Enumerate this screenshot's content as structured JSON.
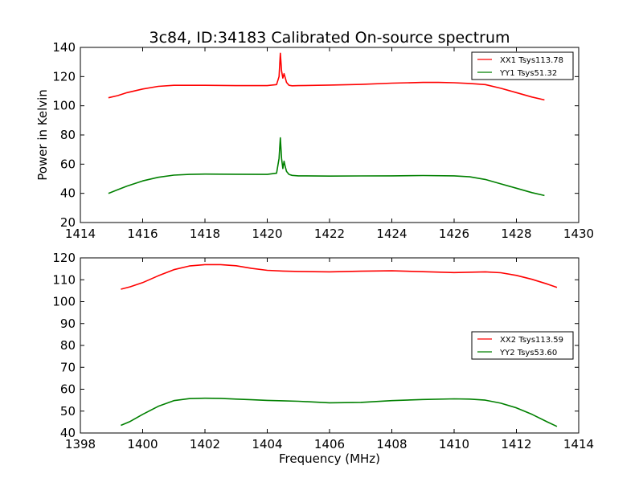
{
  "chart_data": [
    {
      "type": "line",
      "title": "3c84, ID:34183 Calibrated On-source spectrum",
      "xlabel": "",
      "ylabel": "Power in Kelvin",
      "xlim": [
        1414,
        1430
      ],
      "ylim": [
        20,
        140
      ],
      "xticks": [
        "1414",
        "1416",
        "1418",
        "1420",
        "1422",
        "1424",
        "1426",
        "1428",
        "1430"
      ],
      "yticks": [
        "20",
        "40",
        "60",
        "80",
        "100",
        "120",
        "140"
      ],
      "grid": false,
      "legend_position": "top-right",
      "series": [
        {
          "name": "XX1 Tsys113.78",
          "color": "#ff0000",
          "x": [
            1414.9,
            1415.2,
            1415.5,
            1416.0,
            1416.5,
            1417.0,
            1418.0,
            1419.0,
            1420.0,
            1420.3,
            1420.38,
            1420.42,
            1420.46,
            1420.5,
            1420.54,
            1420.58,
            1420.62,
            1420.7,
            1420.8,
            1421.0,
            1422.0,
            1423.0,
            1424.0,
            1425.0,
            1425.5,
            1426.0,
            1426.5,
            1427.0,
            1427.5,
            1428.0,
            1428.5,
            1428.9
          ],
          "y": [
            105.5,
            107,
            109,
            111.5,
            113.3,
            114.0,
            114.0,
            113.8,
            113.8,
            114.5,
            120,
            136,
            124,
            119,
            122,
            119,
            116,
            114,
            113.7,
            113.8,
            114.2,
            114.6,
            115.5,
            116.0,
            116.0,
            115.8,
            115.3,
            114.5,
            112,
            109,
            106,
            104
          ]
        },
        {
          "name": "YY1 Tsys51.32",
          "color": "#008000",
          "x": [
            1414.9,
            1415.2,
            1415.5,
            1416.0,
            1416.5,
            1417.0,
            1417.5,
            1418.0,
            1419.0,
            1420.0,
            1420.3,
            1420.38,
            1420.42,
            1420.46,
            1420.5,
            1420.54,
            1420.58,
            1420.62,
            1420.7,
            1420.8,
            1421.0,
            1422.0,
            1423.0,
            1424.0,
            1425.0,
            1426.0,
            1426.5,
            1427.0,
            1427.5,
            1428.0,
            1428.5,
            1428.9
          ],
          "y": [
            40,
            42.5,
            45,
            48.5,
            51,
            52.5,
            53,
            53.2,
            53.1,
            53.0,
            53.8,
            64,
            78,
            64,
            57,
            62,
            58,
            55,
            53,
            52.3,
            52.0,
            51.8,
            51.9,
            52.0,
            52.2,
            52.0,
            51.3,
            49.5,
            46.5,
            43.5,
            40.5,
            38.5
          ]
        }
      ]
    },
    {
      "type": "line",
      "title": "",
      "xlabel": "Frequency (MHz)",
      "ylabel": "",
      "xlim": [
        1398,
        1414
      ],
      "ylim": [
        40,
        120
      ],
      "xticks": [
        "1398",
        "1400",
        "1402",
        "1404",
        "1406",
        "1408",
        "1410",
        "1412",
        "1414"
      ],
      "yticks": [
        "40",
        "50",
        "60",
        "70",
        "80",
        "90",
        "100",
        "110",
        "120"
      ],
      "grid": false,
      "legend_position": "center-right",
      "series": [
        {
          "name": "XX2 Tsys113.59",
          "color": "#ff0000",
          "x": [
            1399.3,
            1399.6,
            1400.0,
            1400.5,
            1401.0,
            1401.5,
            1402.0,
            1402.5,
            1403.0,
            1403.5,
            1404.0,
            1404.5,
            1405.0,
            1406.0,
            1407.0,
            1408.0,
            1409.0,
            1410.0,
            1411.0,
            1411.5,
            1412.0,
            1412.5,
            1413.0,
            1413.3
          ],
          "y": [
            105.7,
            106.8,
            108.7,
            111.8,
            114.6,
            116.3,
            116.9,
            116.9,
            116.4,
            115.2,
            114.3,
            114.0,
            113.8,
            113.6,
            113.9,
            114.1,
            113.7,
            113.3,
            113.6,
            113.2,
            112.0,
            110.2,
            108.0,
            106.5
          ]
        },
        {
          "name": "YY2 Tsys53.60",
          "color": "#008000",
          "x": [
            1399.3,
            1399.6,
            1400.0,
            1400.5,
            1401.0,
            1401.5,
            1402.0,
            1402.5,
            1403.0,
            1403.5,
            1404.0,
            1404.5,
            1405.0,
            1406.0,
            1407.0,
            1408.0,
            1409.0,
            1410.0,
            1410.5,
            1411.0,
            1411.5,
            1412.0,
            1412.5,
            1413.0,
            1413.3
          ],
          "y": [
            43.5,
            45.3,
            48.5,
            52.2,
            54.8,
            55.7,
            55.9,
            55.8,
            55.5,
            55.2,
            54.9,
            54.7,
            54.5,
            53.8,
            54.0,
            54.8,
            55.3,
            55.6,
            55.5,
            55.0,
            53.6,
            51.5,
            48.5,
            45.0,
            43.0
          ]
        }
      ]
    }
  ]
}
